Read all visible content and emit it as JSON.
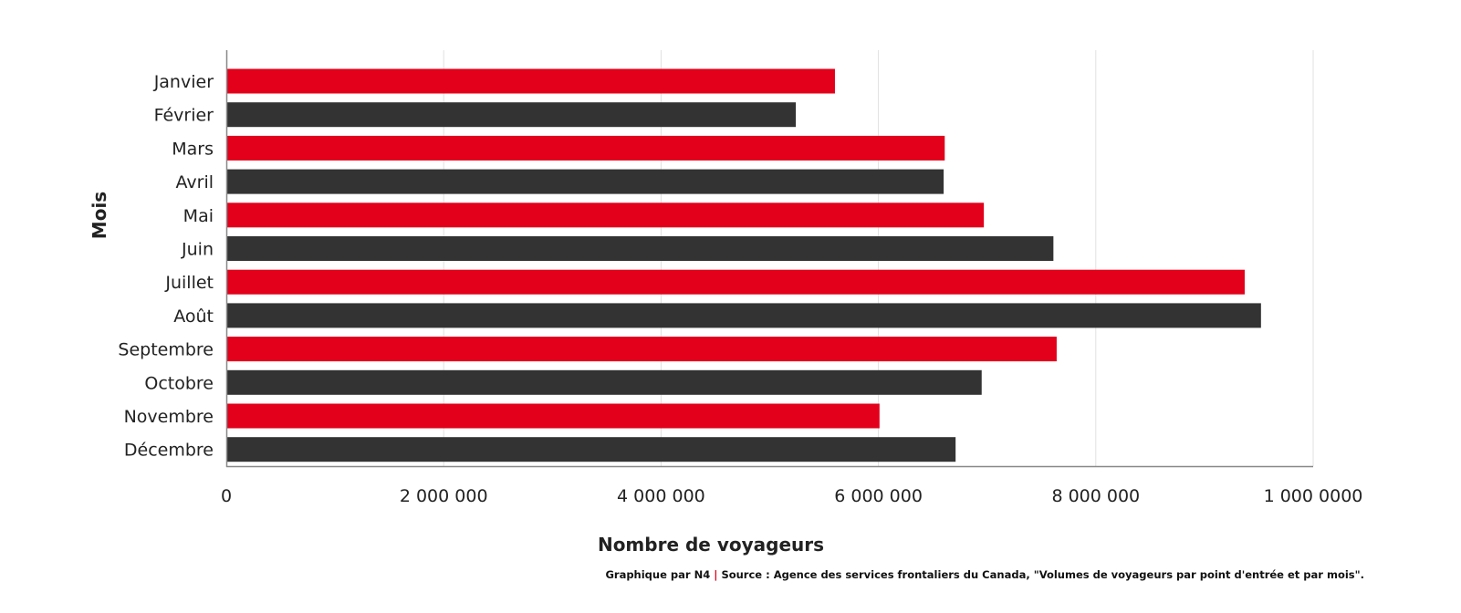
{
  "colors": {
    "red": "#e2001a",
    "dark": "#333333",
    "grid": "#e0e0e0",
    "axis": "#888888"
  },
  "footer": {
    "credit": "Graphique par N4",
    "separator": "|",
    "source": "Source : Agence des services frontaliers du Canada, \"Volumes de voyageurs par point d'entrée et par mois\"."
  },
  "chart_data": {
    "type": "bar",
    "orientation": "horizontal",
    "xlabel": "Nombre de voyageurs",
    "ylabel": "Mois",
    "xlim": [
      0,
      10000000
    ],
    "xticks": [
      0,
      2000000,
      4000000,
      6000000,
      8000000,
      10000000
    ],
    "xtick_labels": [
      "0",
      "2 000 000",
      "4 000 000",
      "6 000 000",
      "8 000 000",
      "1 000 0000"
    ],
    "grid": "vertical",
    "categories": [
      "Janvier",
      "Février",
      "Mars",
      "Avril",
      "Mai",
      "Juin",
      "Juillet",
      "Août",
      "Septembre",
      "Octobre",
      "Novembre",
      "Décembre"
    ],
    "values": [
      5600000,
      5240000,
      6610000,
      6600000,
      6970000,
      7610000,
      9370000,
      9520000,
      7640000,
      6950000,
      6010000,
      6710000
    ],
    "bar_colors": [
      "red",
      "dark",
      "red",
      "dark",
      "red",
      "dark",
      "red",
      "dark",
      "red",
      "dark",
      "red",
      "dark"
    ]
  }
}
